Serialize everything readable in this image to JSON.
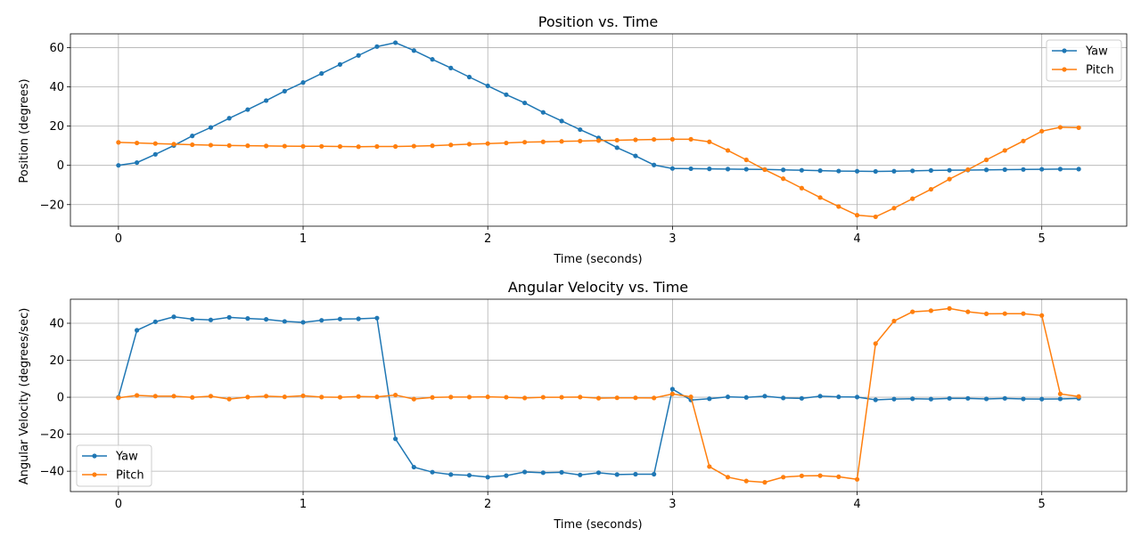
{
  "colors": {
    "yaw": "#1f77b4",
    "pitch": "#ff7f0e"
  },
  "chart_data": [
    {
      "type": "line",
      "title": "Position vs. Time",
      "xlabel": "Time (seconds)",
      "ylabel": "Position (degrees)",
      "xlim": [
        -0.26,
        5.46
      ],
      "ylim": [
        -31.0,
        67.0
      ],
      "xticks": [
        0,
        1,
        2,
        3,
        4,
        5
      ],
      "yticks": [
        -20,
        0,
        20,
        40,
        60
      ],
      "grid": true,
      "legend": "upper right",
      "x": [
        0,
        0.1,
        0.2,
        0.3,
        0.4,
        0.5,
        0.6,
        0.7,
        0.8,
        0.9,
        1.0,
        1.1,
        1.2,
        1.3,
        1.4,
        1.5,
        1.6,
        1.7,
        1.8,
        1.9,
        2.0,
        2.1,
        2.2,
        2.3,
        2.4,
        2.5,
        2.6,
        2.7,
        2.8,
        2.9,
        3.0,
        3.1,
        3.2,
        3.3,
        3.4,
        3.5,
        3.6,
        3.7,
        3.8,
        3.9,
        4.0,
        4.1,
        4.2,
        4.3,
        4.4,
        4.5,
        4.6,
        4.7,
        4.8,
        4.9,
        5.0,
        5.1,
        5.2
      ],
      "series": [
        {
          "name": "Yaw",
          "color": "#1f77b4",
          "values": [
            0.0,
            1.4,
            5.6,
            10.1,
            15.0,
            19.3,
            24.0,
            28.4,
            33.0,
            37.8,
            42.2,
            46.8,
            51.4,
            56.0,
            60.5,
            62.5,
            58.5,
            54.0,
            49.6,
            45.0,
            40.5,
            36.0,
            31.8,
            27.0,
            22.6,
            18.2,
            14.0,
            9.0,
            4.8,
            0.2,
            -1.6,
            -1.7,
            -1.8,
            -1.9,
            -2.0,
            -2.1,
            -2.3,
            -2.5,
            -2.7,
            -2.9,
            -3.0,
            -3.1,
            -3.0,
            -2.8,
            -2.6,
            -2.5,
            -2.4,
            -2.3,
            -2.2,
            -2.1,
            -2.0,
            -1.9,
            -1.9
          ]
        },
        {
          "name": "Pitch",
          "color": "#ff7f0e",
          "values": [
            11.7,
            11.4,
            11.1,
            10.8,
            10.5,
            10.3,
            10.1,
            10.0,
            9.9,
            9.8,
            9.7,
            9.7,
            9.6,
            9.5,
            9.6,
            9.6,
            9.8,
            10.0,
            10.4,
            10.8,
            11.1,
            11.4,
            11.8,
            12.0,
            12.2,
            12.4,
            12.6,
            12.8,
            13.0,
            13.2,
            13.3,
            13.3,
            12.0,
            7.6,
            2.8,
            -2.2,
            -6.8,
            -11.6,
            -16.4,
            -21.0,
            -25.4,
            -26.2,
            -21.8,
            -17.0,
            -12.2,
            -7.0,
            -2.2,
            2.8,
            7.6,
            12.4,
            17.4,
            19.4,
            19.2
          ]
        }
      ]
    },
    {
      "type": "line",
      "title": "Angular Velocity vs. Time",
      "xlabel": "Time (seconds)",
      "ylabel": "Angular Velocity (degrees/sec)",
      "xlim": [
        -0.26,
        5.46
      ],
      "ylim": [
        -51.0,
        53.0
      ],
      "xticks": [
        0,
        1,
        2,
        3,
        4,
        5
      ],
      "yticks": [
        -40,
        -20,
        0,
        20,
        40
      ],
      "grid": true,
      "legend": "lower left",
      "x": [
        0,
        0.1,
        0.2,
        0.3,
        0.4,
        0.5,
        0.6,
        0.7,
        0.8,
        0.9,
        1.0,
        1.1,
        1.2,
        1.3,
        1.4,
        1.5,
        1.6,
        1.7,
        1.8,
        1.9,
        2.0,
        2.1,
        2.2,
        2.3,
        2.4,
        2.5,
        2.6,
        2.7,
        2.8,
        2.9,
        3.0,
        3.1,
        3.2,
        3.3,
        3.4,
        3.5,
        3.6,
        3.7,
        3.8,
        3.9,
        4.0,
        4.1,
        4.2,
        4.3,
        4.4,
        4.5,
        4.6,
        4.7,
        4.8,
        4.9,
        5.0,
        5.1,
        5.2
      ],
      "series": [
        {
          "name": "Yaw",
          "color": "#1f77b4",
          "values": [
            0.0,
            36.2,
            40.8,
            43.5,
            42.2,
            41.8,
            43.2,
            42.6,
            42.1,
            41.0,
            40.5,
            41.6,
            42.3,
            42.4,
            42.8,
            -22.5,
            -37.8,
            -40.5,
            -41.8,
            -42.2,
            -43.2,
            -42.4,
            -40.4,
            -40.8,
            -40.6,
            -42.0,
            -40.8,
            -41.8,
            -41.6,
            -41.6,
            4.4,
            -1.5,
            -0.8,
            0.2,
            -0.1,
            0.6,
            -0.4,
            -0.6,
            0.6,
            0.2,
            0.1,
            -1.4,
            -1.0,
            -0.8,
            -1.0,
            -0.6,
            -0.6,
            -0.9,
            -0.6,
            -0.9,
            -1.0,
            -0.9,
            -0.6
          ]
        },
        {
          "name": "Pitch",
          "color": "#ff7f0e",
          "values": [
            -0.3,
            1.0,
            0.6,
            0.6,
            -0.1,
            0.6,
            -1.0,
            0.1,
            0.6,
            0.2,
            0.8,
            0.1,
            0.0,
            0.4,
            0.2,
            1.2,
            -1.0,
            -0.1,
            0.1,
            0.1,
            0.2,
            0.0,
            -0.4,
            0.0,
            0.0,
            0.1,
            -0.5,
            -0.3,
            -0.3,
            -0.4,
            1.8,
            0.2,
            -37.5,
            -43.2,
            -45.3,
            -46.0,
            -43.2,
            -42.5,
            -42.4,
            -43.0,
            -44.4,
            29.0,
            41.2,
            46.2,
            46.8,
            48.0,
            46.2,
            45.1,
            45.2,
            45.2,
            44.2,
            1.8,
            0.4
          ]
        }
      ]
    }
  ]
}
